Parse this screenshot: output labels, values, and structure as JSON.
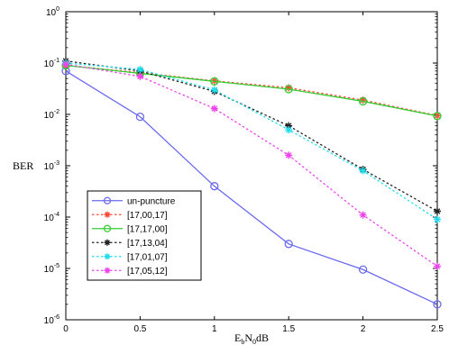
{
  "chart_data": {
    "type": "line",
    "title": "",
    "xlabel": "EbN0dB",
    "ylabel": "BER",
    "xscale": "linear",
    "yscale": "log",
    "xlim": [
      0,
      2.5
    ],
    "ylim": [
      1e-06,
      1
    ],
    "grid": false,
    "legend_position": "bottom-left",
    "x": [
      0,
      0.5,
      1,
      1.5,
      2,
      2.5
    ],
    "x_ticks": [
      "0",
      "0.5",
      "1",
      "1.5",
      "2",
      "2.5"
    ],
    "y_ticks": [
      {
        "base": "10",
        "exp": "0"
      },
      {
        "base": "10",
        "exp": "-1"
      },
      {
        "base": "10",
        "exp": "-2"
      },
      {
        "base": "10",
        "exp": "-3"
      },
      {
        "base": "10",
        "exp": "-4"
      },
      {
        "base": "10",
        "exp": "-5"
      },
      {
        "base": "10",
        "exp": "-6"
      }
    ],
    "series": [
      {
        "name": "un-puncture",
        "color": "#6a6af0",
        "line": "solid",
        "marker": "circle",
        "values": [
          0.07,
          0.009,
          0.0004,
          3e-05,
          9.5e-06,
          2e-06
        ]
      },
      {
        "name": "[17,00,17]",
        "color": "#ff4a3a",
        "line": "dotted",
        "marker": "star",
        "values": [
          0.09,
          0.065,
          0.045,
          0.033,
          0.019,
          0.0095
        ]
      },
      {
        "name": "[17,17,00]",
        "color": "#33cc33",
        "line": "solid",
        "marker": "circle",
        "values": [
          0.09,
          0.063,
          0.044,
          0.031,
          0.018,
          0.0093
        ]
      },
      {
        "name": "[17,13,04]",
        "color": "#222222",
        "line": "dotted",
        "marker": "star",
        "values": [
          0.11,
          0.07,
          0.028,
          0.006,
          0.00085,
          0.00013
        ]
      },
      {
        "name": "[17,01,07]",
        "color": "#22ddee",
        "line": "dotted",
        "marker": "star",
        "values": [
          0.1,
          0.075,
          0.03,
          0.005,
          0.0008,
          9e-05
        ]
      },
      {
        "name": "[17,05,12]",
        "color": "#ee44ee",
        "line": "dotted",
        "marker": "star",
        "values": [
          0.095,
          0.055,
          0.013,
          0.0016,
          0.00011,
          1.1e-05
        ]
      }
    ]
  }
}
